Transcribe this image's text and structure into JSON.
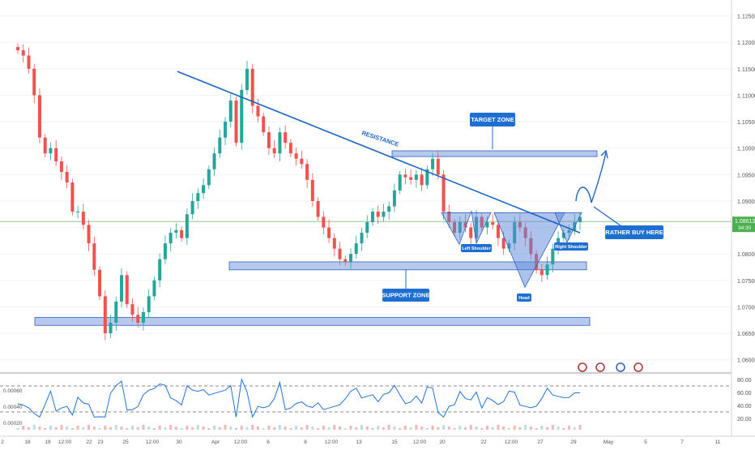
{
  "chart_data": {
    "type": "candlestick",
    "title": "",
    "colors": {
      "up": "#26a69a",
      "down": "#ef5350",
      "trendline": "#1e63c4",
      "zone_fill": "#9db6e6",
      "zone_stroke": "#2f62c0",
      "pattern_fill": "#5b86d9",
      "label_bg": "#1d6fd1",
      "price_line": "#7fbf7f",
      "rsi_line": "#2272d6",
      "current_price_bg": "#4caf50"
    },
    "price_axis": {
      "min": 1.0575,
      "max": 1.128,
      "ticks": [
        "1.12500",
        "1.12000",
        "1.11500",
        "1.11000",
        "1.10500",
        "1.10000",
        "1.09500",
        "1.09000",
        "1.08500",
        "1.08000",
        "1.07500",
        "1.07000",
        "1.06500",
        "1.06000"
      ],
      "current_price": "1.08613",
      "countdown": "34:30"
    },
    "rsi_axis": {
      "ticks": [
        "80.00",
        "60.00",
        "40.00",
        "20.00"
      ],
      "left_ticks": [
        "0.00060",
        "0.00040",
        "0.00020"
      ],
      "upper_level": 70,
      "lower_level": 30
    },
    "time_axis": {
      "labels": [
        "2",
        "18",
        "19",
        "12:00",
        "22",
        "23",
        "25",
        "12:00",
        "30",
        "Apr",
        "12:00",
        "6",
        "8",
        "12:00",
        "13",
        "15",
        "12:00",
        "20",
        "22",
        "12:00",
        "27",
        "29",
        "May",
        "5",
        "7",
        "11"
      ]
    },
    "close_series": [
      1.1185,
      1.1175,
      1.115,
      1.11,
      1.102,
      1.099,
      1.1,
      1.0975,
      1.0955,
      1.0935,
      1.088,
      1.088,
      1.0855,
      1.082,
      1.077,
      1.072,
      1.065,
      1.067,
      1.071,
      1.076,
      1.0705,
      1.0685,
      1.067,
      1.069,
      1.072,
      1.075,
      1.079,
      1.082,
      1.084,
      1.0845,
      1.083,
      1.0875,
      1.09,
      1.0915,
      1.093,
      1.096,
      1.099,
      1.102,
      1.105,
      1.109,
      1.101,
      1.111,
      1.115,
      1.108,
      1.106,
      1.103,
      1.1,
      1.099,
      1.103,
      1.101,
      1.099,
      1.098,
      1.097,
      1.094,
      1.09,
      1.087,
      1.085,
      1.083,
      1.081,
      1.079,
      1.0785,
      1.08,
      1.082,
      1.084,
      1.086,
      1.088,
      1.087,
      1.088,
      1.089,
      1.092,
      1.095,
      1.0945,
      1.094,
      1.095,
      1.093,
      1.096,
      1.098,
      1.095,
      1.088,
      1.086,
      1.084,
      1.086,
      1.085,
      1.083,
      1.087,
      1.085,
      1.086,
      1.0855,
      1.083,
      1.081,
      1.082,
      1.086,
      1.085,
      1.083,
      1.08,
      1.077,
      1.076,
      1.078,
      1.081,
      1.083,
      1.084,
      1.0845,
      1.086,
      1.087
    ],
    "patterns": {
      "resistance_line": [
        [
          1.1145,
          1.084
        ]
      ],
      "target_zone": [
        1.0984,
        1.0995
      ],
      "support_zone": [
        1.077,
        1.0785
      ],
      "lower_zone": [
        1.0665,
        1.068
      ],
      "head_low": 1.0737,
      "neckline": 1.0878
    },
    "labels": {
      "resistance": "RESISTANCE",
      "target_zone": "TARGET ZONE",
      "support_zone": "SUPPORT ZONE",
      "rather_buy": "RATHER BUY HERE",
      "left_shoulder": "Left Shoulder",
      "head": "Head",
      "right_shoulder": "Right Shoulder"
    }
  }
}
